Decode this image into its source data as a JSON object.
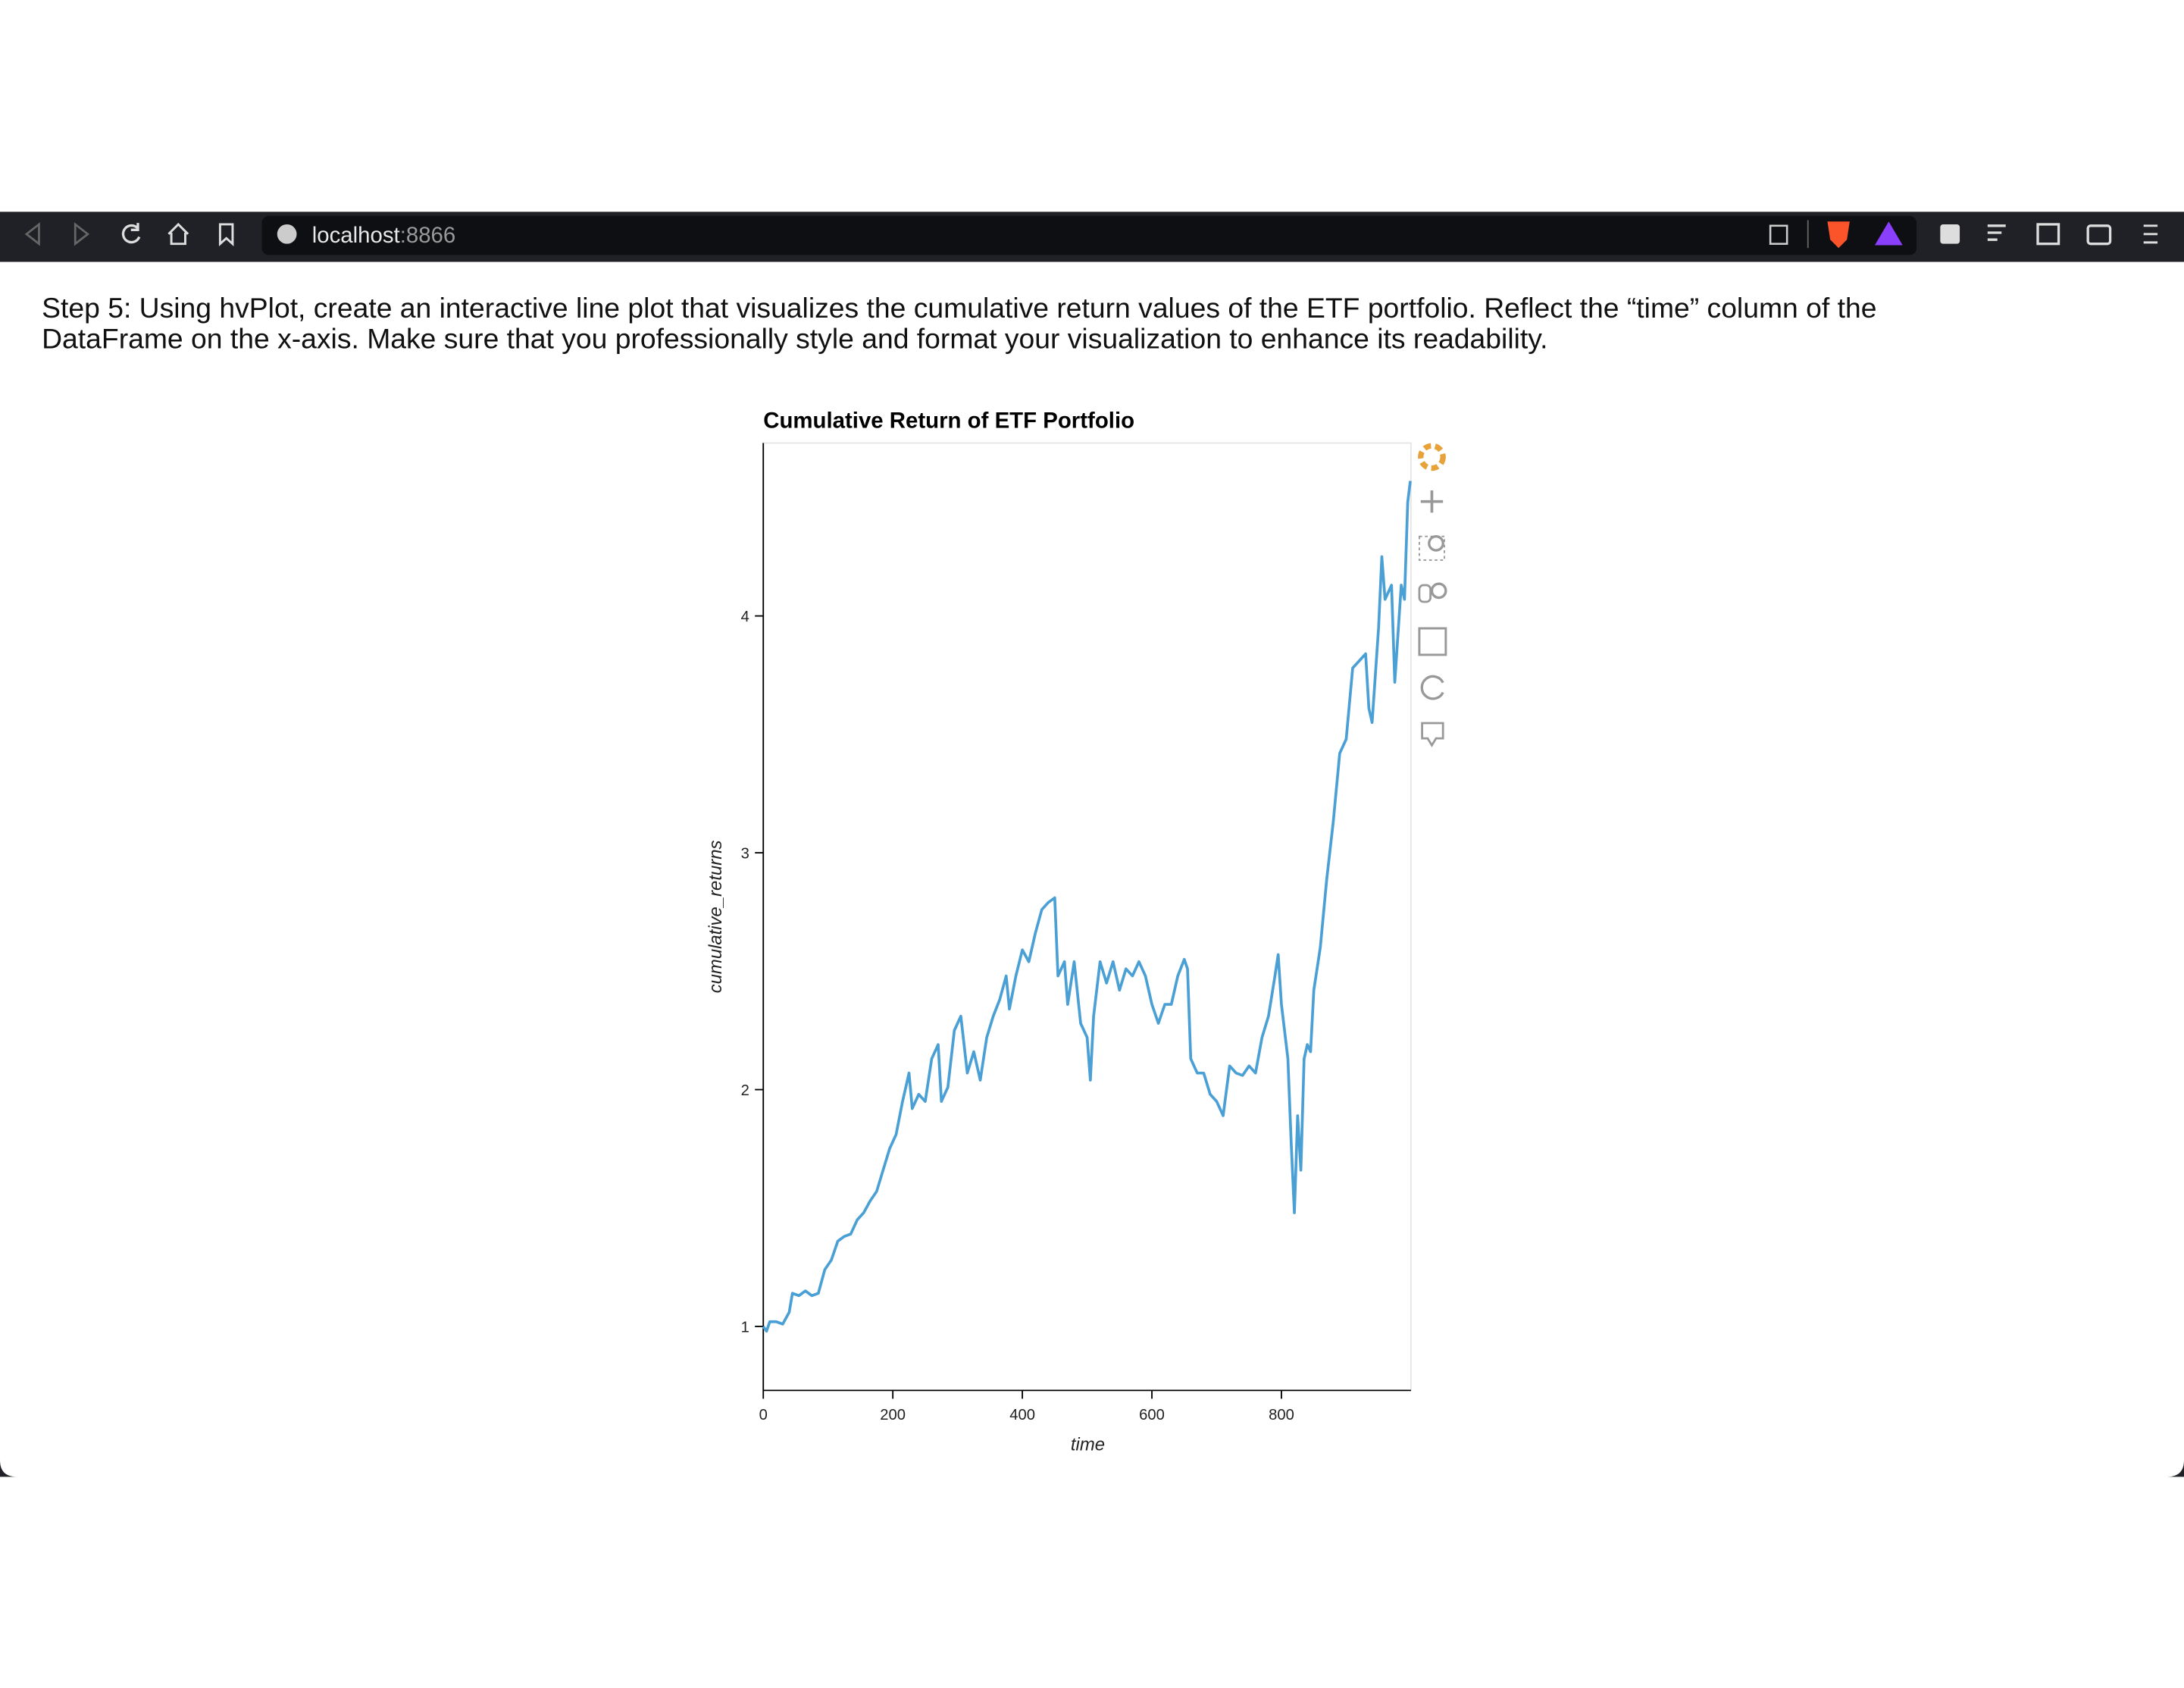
{
  "browser": {
    "url_host": "localhost",
    "url_port": ":8866"
  },
  "instructions": [
    "Step 5: Using hvPlot, create an interactive line plot that visualizes the cumulative return values of the ETF portfolio. Reflect the “time” column of the",
    "DataFrame on the x-axis. Make sure that you professionally style and format your visualization to enhance its readability."
  ],
  "chart_data": {
    "type": "line",
    "title": "Cumulative Return of ETF Portfolio",
    "xlabel": "time",
    "ylabel": "cumulative_returns",
    "color": "#4a9fd5",
    "x": [
      0,
      5,
      10,
      20,
      30,
      40,
      45,
      55,
      65,
      75,
      85,
      95,
      105,
      115,
      125,
      135,
      145,
      155,
      165,
      175,
      185,
      195,
      205,
      215,
      225,
      230,
      240,
      250,
      260,
      270,
      275,
      285,
      295,
      305,
      315,
      325,
      335,
      345,
      355,
      365,
      375,
      380,
      390,
      400,
      410,
      420,
      430,
      440,
      450,
      455,
      465,
      470,
      480,
      490,
      500,
      505,
      510,
      520,
      530,
      540,
      550,
      560,
      570,
      580,
      590,
      600,
      610,
      620,
      630,
      640,
      650,
      655,
      660,
      670,
      680,
      690,
      700,
      710,
      720,
      730,
      740,
      750,
      760,
      770,
      780,
      790,
      795,
      800,
      810,
      815,
      820,
      825,
      830,
      835,
      840,
      845,
      850,
      860,
      870,
      880,
      890,
      900,
      910,
      920,
      930,
      935,
      940,
      950,
      955,
      960,
      970,
      975,
      985,
      990,
      995,
      999
    ],
    "values": [
      1.0,
      0.98,
      1.02,
      1.02,
      1.01,
      1.06,
      1.14,
      1.13,
      1.15,
      1.13,
      1.14,
      1.24,
      1.28,
      1.36,
      1.38,
      1.39,
      1.45,
      1.48,
      1.53,
      1.57,
      1.66,
      1.75,
      1.81,
      1.95,
      2.07,
      1.92,
      1.98,
      1.95,
      2.13,
      2.19,
      1.95,
      2.01,
      2.25,
      2.31,
      2.07,
      2.16,
      2.04,
      2.22,
      2.31,
      2.38,
      2.48,
      2.34,
      2.48,
      2.59,
      2.54,
      2.66,
      2.76,
      2.79,
      2.81,
      2.48,
      2.54,
      2.36,
      2.54,
      2.28,
      2.22,
      2.04,
      2.31,
      2.54,
      2.45,
      2.54,
      2.42,
      2.51,
      2.48,
      2.54,
      2.48,
      2.36,
      2.28,
      2.36,
      2.36,
      2.48,
      2.55,
      2.51,
      2.13,
      2.07,
      2.07,
      1.98,
      1.95,
      1.89,
      2.1,
      2.07,
      2.06,
      2.1,
      2.07,
      2.22,
      2.31,
      2.48,
      2.57,
      2.36,
      2.13,
      1.78,
      1.48,
      1.89,
      1.66,
      2.13,
      2.19,
      2.16,
      2.42,
      2.6,
      2.89,
      3.13,
      3.42,
      3.48,
      3.78,
      3.81,
      3.84,
      3.61,
      3.55,
      3.95,
      4.25,
      4.07,
      4.13,
      3.72,
      4.13,
      4.07,
      4.48,
      4.57
    ],
    "xlim": [
      0,
      1000
    ],
    "ylim": [
      0.73,
      4.73
    ],
    "xticks": [
      0,
      200,
      400,
      600,
      800
    ],
    "yticks": [
      1,
      2,
      3,
      4
    ]
  }
}
